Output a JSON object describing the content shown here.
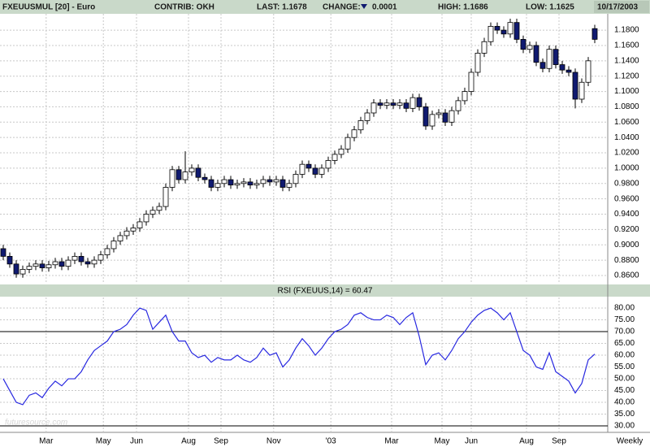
{
  "header": {
    "symbol": "FXEUUSMUL [20] - Euro",
    "contrib": "CONTRIB: OKH",
    "last": "LAST: 1.1678",
    "change_label": "CHANGE:",
    "change": "0.0001",
    "high": "HIGH: 1.1686",
    "low": "LOW: 1.1625",
    "date": "10/17/2003"
  },
  "chart_data": [
    {
      "type": "candlestick",
      "up_color": "#ffffff",
      "down_color": "#101a70",
      "grid": true,
      "xlim": [
        -0.5,
        93
      ],
      "ylim": [
        0.8515,
        1.2013
      ],
      "yticks": [
        {
          "value": 0.86,
          "label": "0.8600"
        },
        {
          "value": 0.88,
          "label": "0.8800"
        },
        {
          "value": 0.9,
          "label": "0.9000"
        },
        {
          "value": 0.92,
          "label": "0.9200"
        },
        {
          "value": 0.94,
          "label": "0.9400"
        },
        {
          "value": 0.96,
          "label": "0.9600"
        },
        {
          "value": 0.98,
          "label": "0.9800"
        },
        {
          "value": 1.0,
          "label": "1.0000"
        },
        {
          "value": 1.02,
          "label": "1.0200"
        },
        {
          "value": 1.04,
          "label": "1.0400"
        },
        {
          "value": 1.06,
          "label": "1.0600"
        },
        {
          "value": 1.08,
          "label": "1.0800"
        },
        {
          "value": 1.1,
          "label": "1.1000"
        },
        {
          "value": 1.12,
          "label": "1.1200"
        },
        {
          "value": 1.14,
          "label": "1.1400"
        },
        {
          "value": 1.16,
          "label": "1.1600"
        },
        {
          "value": 1.18,
          "label": "1.1800"
        }
      ],
      "open": [
        0.895,
        0.885,
        0.875,
        0.862,
        0.868,
        0.872,
        0.875,
        0.87,
        0.874,
        0.878,
        0.872,
        0.88,
        0.885,
        0.878,
        0.875,
        0.88,
        0.887,
        0.895,
        0.905,
        0.912,
        0.918,
        0.922,
        0.93,
        0.94,
        0.945,
        0.95,
        0.975,
        0.998,
        0.985,
        0.995,
        1.0,
        0.988,
        0.985,
        0.975,
        0.98,
        0.985,
        0.978,
        0.98,
        0.982,
        0.978,
        0.98,
        0.985,
        0.982,
        0.985,
        0.975,
        0.98,
        0.992,
        1.005,
        1.0,
        0.992,
        1.0,
        1.01,
        1.018,
        1.025,
        1.04,
        1.05,
        1.062,
        1.072,
        1.085,
        1.082,
        1.085,
        1.082,
        1.085,
        1.078,
        1.092,
        1.08,
        1.055,
        1.07,
        1.072,
        1.06,
        1.075,
        1.088,
        1.1,
        1.125,
        1.15,
        1.165,
        1.185,
        1.18,
        1.175,
        1.19,
        1.168,
        1.155,
        1.16,
        1.138,
        1.13,
        1.155,
        1.135,
        1.128,
        1.125,
        1.09,
        1.112,
        1.182
      ],
      "high": [
        0.9,
        0.89,
        0.88,
        0.873,
        0.877,
        0.88,
        0.88,
        0.879,
        0.883,
        0.883,
        0.885,
        0.89,
        0.89,
        0.883,
        0.885,
        0.892,
        0.9,
        0.91,
        0.917,
        0.923,
        0.927,
        0.935,
        0.945,
        0.95,
        0.955,
        0.98,
        1.003,
        1.003,
        1.022,
        1.005,
        1.005,
        0.993,
        0.99,
        0.985,
        0.99,
        0.99,
        0.985,
        0.987,
        0.987,
        0.985,
        0.99,
        0.99,
        0.99,
        0.99,
        0.985,
        0.997,
        1.01,
        1.01,
        1.005,
        1.005,
        1.015,
        1.023,
        1.03,
        1.045,
        1.055,
        1.067,
        1.077,
        1.09,
        1.09,
        1.09,
        1.09,
        1.09,
        1.09,
        1.097,
        1.097,
        1.085,
        1.075,
        1.077,
        1.077,
        1.08,
        1.093,
        1.105,
        1.13,
        1.155,
        1.17,
        1.19,
        1.19,
        1.185,
        1.195,
        1.195,
        1.173,
        1.165,
        1.165,
        1.143,
        1.16,
        1.16,
        1.14,
        1.133,
        1.13,
        1.117,
        1.145,
        1.187
      ],
      "low": [
        0.88,
        0.87,
        0.857,
        0.857,
        0.863,
        0.867,
        0.865,
        0.865,
        0.869,
        0.867,
        0.867,
        0.875,
        0.873,
        0.87,
        0.87,
        0.875,
        0.882,
        0.89,
        0.9,
        0.907,
        0.913,
        0.917,
        0.925,
        0.935,
        0.94,
        0.945,
        0.97,
        0.98,
        0.98,
        0.99,
        0.983,
        0.98,
        0.97,
        0.97,
        0.975,
        0.973,
        0.973,
        0.975,
        0.973,
        0.973,
        0.975,
        0.977,
        0.977,
        0.97,
        0.97,
        0.975,
        0.987,
        0.995,
        0.987,
        0.987,
        0.995,
        1.005,
        1.013,
        1.02,
        1.035,
        1.045,
        1.057,
        1.067,
        1.077,
        1.077,
        1.077,
        1.077,
        1.073,
        1.073,
        1.075,
        1.05,
        1.05,
        1.065,
        1.055,
        1.055,
        1.07,
        1.083,
        1.095,
        1.12,
        1.145,
        1.16,
        1.175,
        1.17,
        1.17,
        1.163,
        1.15,
        1.15,
        1.133,
        1.125,
        1.125,
        1.13,
        1.123,
        1.12,
        1.078,
        1.085,
        1.107,
        1.163
      ],
      "close": [
        0.885,
        0.875,
        0.862,
        0.868,
        0.872,
        0.875,
        0.87,
        0.874,
        0.878,
        0.872,
        0.88,
        0.885,
        0.878,
        0.875,
        0.88,
        0.887,
        0.895,
        0.905,
        0.912,
        0.918,
        0.922,
        0.93,
        0.94,
        0.945,
        0.95,
        0.975,
        0.998,
        0.985,
        0.995,
        1.0,
        0.988,
        0.985,
        0.975,
        0.98,
        0.985,
        0.978,
        0.98,
        0.982,
        0.978,
        0.98,
        0.985,
        0.982,
        0.985,
        0.975,
        0.98,
        0.992,
        1.005,
        1.0,
        0.992,
        1.0,
        1.01,
        1.018,
        1.025,
        1.04,
        1.05,
        1.062,
        1.072,
        1.085,
        1.082,
        1.085,
        1.082,
        1.085,
        1.078,
        1.092,
        1.08,
        1.055,
        1.07,
        1.072,
        1.06,
        1.075,
        1.088,
        1.1,
        1.125,
        1.15,
        1.165,
        1.185,
        1.18,
        1.175,
        1.19,
        1.168,
        1.155,
        1.16,
        1.138,
        1.13,
        1.155,
        1.135,
        1.128,
        1.125,
        1.09,
        1.112,
        1.14,
        1.168
      ]
    },
    {
      "type": "line",
      "title": "RSI (FXEUUS,14) = 60.47",
      "color": "#2828e0",
      "grid": true,
      "hlines": [
        70,
        30
      ],
      "xlim": [
        -0.5,
        93
      ],
      "ylim": [
        27.6,
        84.5
      ],
      "xticks": [
        {
          "value": 6.6,
          "label": "Mar"
        },
        {
          "value": 15.4,
          "label": "May"
        },
        {
          "value": 20.5,
          "label": "Jun"
        },
        {
          "value": 28.5,
          "label": "Aug"
        },
        {
          "value": 33.5,
          "label": "Sep"
        },
        {
          "value": 41.6,
          "label": "Nov"
        },
        {
          "value": 50.4,
          "label": "'03"
        },
        {
          "value": 59.75,
          "label": "Mar"
        },
        {
          "value": 67.5,
          "label": "May"
        },
        {
          "value": 72,
          "label": "Jun"
        },
        {
          "value": 80.5,
          "label": "Aug"
        },
        {
          "value": 85.5,
          "label": "Sep"
        }
      ],
      "yticks": [
        {
          "value": 30,
          "label": "30.00"
        },
        {
          "value": 35,
          "label": "35.00"
        },
        {
          "value": 40,
          "label": "40.00"
        },
        {
          "value": 45,
          "label": "45.00"
        },
        {
          "value": 50,
          "label": "50.00"
        },
        {
          "value": 55,
          "label": "55.00"
        },
        {
          "value": 60,
          "label": "60.00"
        },
        {
          "value": 65,
          "label": "65.00"
        },
        {
          "value": 70,
          "label": "70.00"
        },
        {
          "value": 75,
          "label": "75.00"
        },
        {
          "value": 80,
          "label": "80.00"
        }
      ],
      "values": [
        50,
        45,
        40,
        39,
        43,
        44,
        42,
        46,
        49,
        47,
        50,
        50,
        53,
        58,
        62,
        64,
        66,
        70,
        71,
        73,
        77,
        80,
        79,
        71,
        74,
        77,
        70,
        66,
        66,
        61,
        59,
        60,
        57,
        59,
        58,
        58,
        60,
        58,
        57,
        59,
        63,
        60,
        61,
        55,
        58,
        63,
        67,
        64,
        60,
        63,
        67,
        70,
        71,
        73,
        77,
        78,
        76,
        75,
        75,
        77,
        76,
        73,
        76,
        78,
        68,
        56,
        60,
        61,
        58,
        62,
        67,
        70,
        74,
        77,
        79,
        80,
        78,
        75,
        78,
        70,
        62,
        60,
        55,
        54,
        61,
        53,
        51,
        49,
        44,
        48,
        58,
        60.47
      ]
    }
  ],
  "footer": {
    "period": "Weekly",
    "watermark": "futuresource.com"
  }
}
